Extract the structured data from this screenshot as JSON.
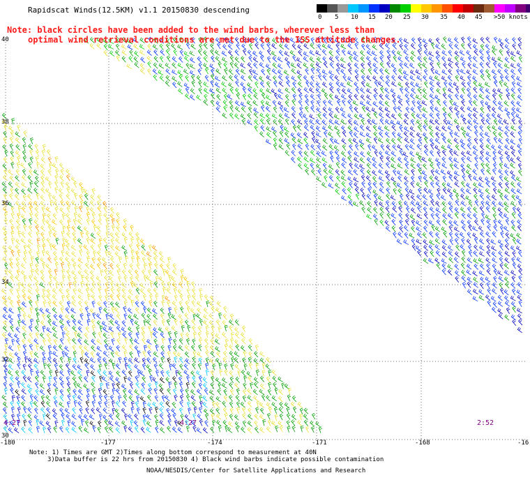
{
  "title": "Rapidscat Winds(12.5KM) v1.1 20150830 descending",
  "note_line1": "Note: black circles have been added to the wind barbs, wherever less than",
  "note_line2": "optimal wind retrieval conditions are met due to the ISS attitude changes.",
  "legend": {
    "colors": [
      "#000000",
      "#555555",
      "#999999",
      "#00c8ff",
      "#0096ff",
      "#0032ff",
      "#0000c0",
      "#008800",
      "#00d000",
      "#ffff00",
      "#ffc800",
      "#ff9600",
      "#ff5000",
      "#ff0000",
      "#c00000",
      "#6a2a10",
      "#a05a30",
      "#ff00ff",
      "#c000ff",
      "#800080",
      "#400070"
    ],
    "labels": [
      "0",
      "5",
      "10",
      "15",
      "20",
      "25",
      "30",
      "35",
      "40",
      "45",
      ">50 knots"
    ]
  },
  "lat_labels": [
    "40",
    "38",
    "36",
    "34",
    "32",
    "30"
  ],
  "lon_labels": [
    "-180",
    "-177",
    "-174",
    "-171",
    "-168",
    "-16"
  ],
  "time_labels": [
    "4:27",
    "4:27",
    "2:52"
  ],
  "footnote_line1": "Note: 1) Times are GMT 2)Times along bottom correspond to measurement at 40N",
  "footnote_line2": "3)Data buffer is 22 hrs from 20150830 4) Black wind barbs indicate possible contamination",
  "credit": "NOAA/NESDIS/Center for Satellite Applications and Research"
}
